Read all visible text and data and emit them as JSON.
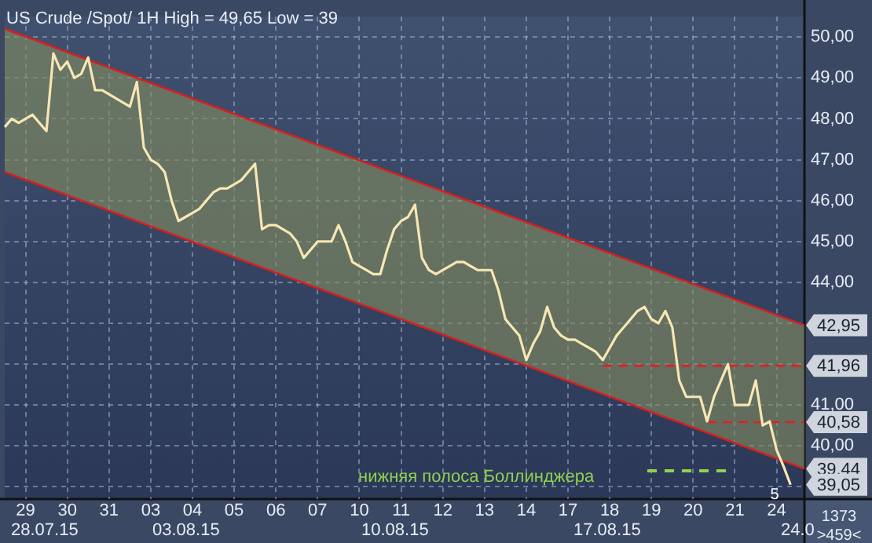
{
  "chart_data": {
    "type": "line",
    "title": "US Crude /Spot/ 1H High = 49,65 Low = 39",
    "categories": [
      null,
      null,
      null,
      "29",
      null,
      null,
      null,
      null,
      null,
      "30",
      null,
      null,
      null,
      null,
      null,
      "31",
      null,
      null,
      null,
      null,
      null,
      "03",
      null,
      null,
      null,
      null,
      null,
      "04",
      null,
      null,
      null,
      null,
      null,
      "05",
      null,
      null,
      null,
      null,
      null,
      "06",
      null,
      null,
      null,
      null,
      null,
      "07",
      null,
      null,
      null,
      null,
      null,
      "10",
      null,
      null,
      null,
      null,
      null,
      "11",
      null,
      null,
      null,
      null,
      null,
      "12",
      null,
      null,
      null,
      null,
      null,
      "13",
      null,
      null,
      null,
      null,
      null,
      "14",
      null,
      null,
      null,
      null,
      null,
      "17",
      null,
      null,
      null,
      null,
      null,
      "18",
      null,
      null,
      null,
      null,
      null,
      "19",
      null,
      null,
      null,
      null,
      null,
      "20",
      null,
      null,
      null,
      null,
      null,
      "21",
      null,
      null,
      null,
      null,
      null,
      "24",
      null,
      null,
      null,
      null
    ],
    "ylim": [
      38.7,
      50.5
    ],
    "yticks": [
      {
        "value": 39,
        "label": null
      },
      {
        "value": 40,
        "label": "40,00"
      },
      {
        "value": 41,
        "label": "41,00"
      },
      {
        "value": 42,
        "label": null
      },
      {
        "value": 43,
        "label": null
      },
      {
        "value": 44,
        "label": "44,00"
      },
      {
        "value": 45,
        "label": "45,00"
      },
      {
        "value": 46,
        "label": "46,00"
      },
      {
        "value": 47,
        "label": "47,00"
      },
      {
        "value": 48,
        "label": "48,00"
      },
      {
        "value": 49,
        "label": "49,00"
      },
      {
        "value": 50,
        "label": "50,00"
      }
    ],
    "grid": true,
    "legend": false,
    "marker": "none",
    "series": [
      {
        "type": "line",
        "color": "#d42020",
        "values": [
          50.2,
          null,
          null,
          null,
          null,
          null,
          null,
          null,
          null,
          null,
          null,
          null,
          null,
          null,
          null,
          null,
          null,
          null,
          null,
          null,
          null,
          null,
          null,
          null,
          null,
          null,
          null,
          null,
          null,
          null,
          null,
          null,
          null,
          null,
          null,
          null,
          null,
          null,
          null,
          null,
          null,
          null,
          null,
          null,
          null,
          null,
          null,
          null,
          null,
          null,
          null,
          null,
          null,
          null,
          null,
          null,
          null,
          null,
          null,
          null,
          null,
          null,
          null,
          null,
          null,
          null,
          null,
          null,
          null,
          null,
          null,
          null,
          null,
          null,
          null,
          null,
          null,
          null,
          null,
          null,
          null,
          null,
          null,
          null,
          null,
          null,
          null,
          null,
          null,
          null,
          null,
          null,
          null,
          null,
          null,
          null,
          null,
          null,
          null,
          null,
          null,
          null,
          null,
          null,
          null,
          null,
          null,
          null,
          null,
          null,
          null,
          null,
          null,
          null,
          null,
          42.95
        ],
        "lower": [
          46.7,
          null,
          null,
          null,
          null,
          null,
          null,
          null,
          null,
          null,
          null,
          null,
          null,
          null,
          null,
          null,
          null,
          null,
          null,
          null,
          null,
          null,
          null,
          null,
          null,
          null,
          null,
          null,
          null,
          null,
          null,
          null,
          null,
          null,
          null,
          null,
          null,
          null,
          null,
          null,
          null,
          null,
          null,
          null,
          null,
          null,
          null,
          null,
          null,
          null,
          null,
          null,
          null,
          null,
          null,
          null,
          null,
          null,
          null,
          null,
          null,
          null,
          null,
          null,
          null,
          null,
          null,
          null,
          null,
          null,
          null,
          null,
          null,
          null,
          null,
          null,
          null,
          null,
          null,
          null,
          null,
          null,
          null,
          null,
          null,
          null,
          null,
          null,
          null,
          null,
          null,
          null,
          null,
          null,
          null,
          null,
          null,
          null,
          null,
          null,
          null,
          null,
          null,
          null,
          null,
          null,
          null,
          null,
          null,
          null,
          null,
          null,
          null,
          null,
          null,
          39.44
        ],
        "upper": [
          50.2,
          null,
          null,
          null,
          null,
          null,
          null,
          null,
          null,
          null,
          null,
          null,
          null,
          null,
          null,
          null,
          null,
          null,
          null,
          null,
          null,
          null,
          null,
          null,
          null,
          null,
          null,
          null,
          null,
          null,
          null,
          null,
          null,
          null,
          null,
          null,
          null,
          null,
          null,
          null,
          null,
          null,
          null,
          null,
          null,
          null,
          null,
          null,
          null,
          null,
          null,
          null,
          null,
          null,
          null,
          null,
          null,
          null,
          null,
          null,
          null,
          null,
          null,
          null,
          null,
          null,
          null,
          null,
          null,
          null,
          null,
          null,
          null,
          null,
          null,
          null,
          null,
          null,
          null,
          null,
          null,
          null,
          null,
          null,
          null,
          null,
          null,
          null,
          null,
          null,
          null,
          null,
          null,
          null,
          null,
          null,
          null,
          null,
          null,
          null,
          null,
          null,
          null,
          null,
          null,
          null,
          null,
          null,
          null,
          null,
          null,
          null,
          null,
          null,
          null,
          42.95
        ],
        "value_labels": [
          null,
          null,
          null,
          null,
          null,
          null,
          null,
          null,
          null,
          null,
          null,
          null,
          null,
          null,
          null,
          null,
          null,
          null,
          null,
          null,
          null,
          null,
          null,
          null,
          null,
          null,
          null,
          null,
          null,
          null,
          null,
          null,
          null,
          null,
          null,
          null,
          null,
          null,
          null,
          null,
          null,
          null,
          null,
          null,
          null,
          null,
          null,
          null,
          null,
          null,
          null,
          null,
          null,
          null,
          null,
          null,
          null,
          null,
          null,
          null,
          null,
          null,
          null,
          null,
          null,
          null,
          null,
          null,
          null,
          null,
          null,
          null,
          null,
          null,
          null,
          null,
          null,
          null,
          null,
          null,
          null,
          null,
          null,
          null,
          null,
          null,
          null,
          null,
          null,
          null,
          null,
          null,
          null,
          null,
          null,
          null,
          null,
          null,
          null,
          null,
          null,
          null,
          null,
          null,
          null,
          null,
          null,
          null,
          null,
          null,
          null,
          null,
          null,
          null,
          null,
          "42,95"
        ]
      },
      {
        "type": "line",
        "color": "#d42020",
        "values": [
          46.7,
          null,
          null,
          null,
          null,
          null,
          null,
          null,
          null,
          null,
          null,
          null,
          null,
          null,
          null,
          null,
          null,
          null,
          null,
          null,
          null,
          null,
          null,
          null,
          null,
          null,
          null,
          null,
          null,
          null,
          null,
          null,
          null,
          null,
          null,
          null,
          null,
          null,
          null,
          null,
          null,
          null,
          null,
          null,
          null,
          null,
          null,
          null,
          null,
          null,
          null,
          null,
          null,
          null,
          null,
          null,
          null,
          null,
          null,
          null,
          null,
          null,
          null,
          null,
          null,
          null,
          null,
          null,
          null,
          null,
          null,
          null,
          null,
          null,
          null,
          null,
          null,
          null,
          null,
          null,
          null,
          null,
          null,
          null,
          null,
          null,
          null,
          null,
          null,
          null,
          null,
          null,
          null,
          null,
          null,
          null,
          null,
          null,
          null,
          null,
          null,
          null,
          null,
          null,
          null,
          null,
          null,
          null,
          null,
          null,
          null,
          null,
          null,
          null,
          null,
          39.44
        ],
        "value_labels": [
          null,
          null,
          null,
          null,
          null,
          null,
          null,
          null,
          null,
          null,
          null,
          null,
          null,
          null,
          null,
          null,
          null,
          null,
          null,
          null,
          null,
          null,
          null,
          null,
          null,
          null,
          null,
          null,
          null,
          null,
          null,
          null,
          null,
          null,
          null,
          null,
          null,
          null,
          null,
          null,
          null,
          null,
          null,
          null,
          null,
          null,
          null,
          null,
          null,
          null,
          null,
          null,
          null,
          null,
          null,
          null,
          null,
          null,
          null,
          null,
          null,
          null,
          null,
          null,
          null,
          null,
          null,
          null,
          null,
          null,
          null,
          null,
          null,
          null,
          null,
          null,
          null,
          null,
          null,
          null,
          null,
          null,
          null,
          null,
          null,
          null,
          null,
          null,
          null,
          null,
          null,
          null,
          null,
          null,
          null,
          null,
          null,
          null,
          null,
          null,
          null,
          null,
          null,
          null,
          null,
          null,
          null,
          null,
          null,
          null,
          null,
          null,
          null,
          null,
          null,
          "39,44"
        ]
      },
      {
        "type": "line",
        "color": "#e02020",
        "line_style": "dashed",
        "values": [
          null,
          null,
          null,
          null,
          null,
          null,
          null,
          null,
          null,
          null,
          null,
          null,
          null,
          null,
          null,
          null,
          null,
          null,
          null,
          null,
          null,
          null,
          null,
          null,
          null,
          null,
          null,
          null,
          null,
          null,
          null,
          null,
          null,
          null,
          null,
          null,
          null,
          null,
          null,
          null,
          null,
          null,
          null,
          null,
          null,
          null,
          null,
          null,
          null,
          null,
          null,
          null,
          null,
          null,
          null,
          null,
          null,
          null,
          null,
          null,
          null,
          null,
          null,
          null,
          null,
          null,
          null,
          null,
          null,
          null,
          null,
          null,
          null,
          null,
          null,
          null,
          null,
          null,
          null,
          null,
          null,
          null,
          null,
          null,
          null,
          null,
          41.96,
          null,
          null,
          null,
          null,
          null,
          null,
          null,
          null,
          null,
          null,
          null,
          null,
          null,
          null,
          null,
          null,
          null,
          null,
          null,
          null,
          null,
          null,
          null,
          null,
          null,
          null,
          null,
          null,
          41.96
        ],
        "value_labels": [
          null,
          null,
          null,
          null,
          null,
          null,
          null,
          null,
          null,
          null,
          null,
          null,
          null,
          null,
          null,
          null,
          null,
          null,
          null,
          null,
          null,
          null,
          null,
          null,
          null,
          null,
          null,
          null,
          null,
          null,
          null,
          null,
          null,
          null,
          null,
          null,
          null,
          null,
          null,
          null,
          null,
          null,
          null,
          null,
          null,
          null,
          null,
          null,
          null,
          null,
          null,
          null,
          null,
          null,
          null,
          null,
          null,
          null,
          null,
          null,
          null,
          null,
          null,
          null,
          null,
          null,
          null,
          null,
          null,
          null,
          null,
          null,
          null,
          null,
          null,
          null,
          null,
          null,
          null,
          null,
          null,
          null,
          null,
          null,
          null,
          null,
          null,
          null,
          null,
          null,
          null,
          null,
          null,
          null,
          null,
          null,
          null,
          null,
          null,
          null,
          null,
          null,
          null,
          null,
          null,
          null,
          null,
          null,
          null,
          null,
          null,
          null,
          null,
          null,
          null,
          "41,96"
        ]
      },
      {
        "type": "line",
        "color": "#e02020",
        "line_style": "dashed",
        "values": [
          null,
          null,
          null,
          null,
          null,
          null,
          null,
          null,
          null,
          null,
          null,
          null,
          null,
          null,
          null,
          null,
          null,
          null,
          null,
          null,
          null,
          null,
          null,
          null,
          null,
          null,
          null,
          null,
          null,
          null,
          null,
          null,
          null,
          null,
          null,
          null,
          null,
          null,
          null,
          null,
          null,
          null,
          null,
          null,
          null,
          null,
          null,
          null,
          null,
          null,
          null,
          null,
          null,
          null,
          null,
          null,
          null,
          null,
          null,
          null,
          null,
          null,
          null,
          null,
          null,
          null,
          null,
          null,
          null,
          null,
          null,
          null,
          null,
          null,
          null,
          null,
          null,
          null,
          null,
          null,
          null,
          null,
          null,
          null,
          null,
          null,
          null,
          null,
          null,
          null,
          null,
          null,
          null,
          null,
          null,
          null,
          null,
          null,
          null,
          null,
          null,
          40.58,
          null,
          null,
          null,
          null,
          null,
          null,
          null,
          null,
          null,
          null,
          null,
          null,
          null,
          40.58
        ],
        "value_labels": [
          null,
          null,
          null,
          null,
          null,
          null,
          null,
          null,
          null,
          null,
          null,
          null,
          null,
          null,
          null,
          null,
          null,
          null,
          null,
          null,
          null,
          null,
          null,
          null,
          null,
          null,
          null,
          null,
          null,
          null,
          null,
          null,
          null,
          null,
          null,
          null,
          null,
          null,
          null,
          null,
          null,
          null,
          null,
          null,
          null,
          null,
          null,
          null,
          null,
          null,
          null,
          null,
          null,
          null,
          null,
          null,
          null,
          null,
          null,
          null,
          null,
          null,
          null,
          null,
          null,
          null,
          null,
          null,
          null,
          null,
          null,
          null,
          null,
          null,
          null,
          null,
          null,
          null,
          null,
          null,
          null,
          null,
          null,
          null,
          null,
          null,
          null,
          null,
          null,
          null,
          null,
          null,
          null,
          null,
          null,
          null,
          null,
          null,
          null,
          null,
          null,
          null,
          null,
          null,
          null,
          null,
          null,
          null,
          null,
          null,
          null,
          null,
          null,
          null,
          null,
          "40,58"
        ]
      },
      {
        "type": "line",
        "color": "#f7e7b4",
        "values": [
          47.8,
          48.0,
          47.9,
          48.0,
          48.1,
          47.9,
          47.7,
          49.6,
          49.2,
          49.4,
          49.0,
          49.1,
          49.5,
          48.7,
          48.7,
          48.6,
          48.5,
          48.4,
          48.3,
          48.9,
          47.3,
          47.0,
          46.9,
          46.7,
          46.0,
          45.5,
          45.6,
          45.7,
          45.8,
          46.0,
          46.2,
          46.3,
          46.3,
          46.4,
          46.5,
          46.7,
          46.9,
          45.3,
          45.4,
          45.4,
          45.3,
          45.2,
          45.0,
          44.6,
          44.8,
          45.0,
          45.0,
          45.0,
          45.4,
          45.0,
          44.5,
          44.4,
          44.3,
          44.2,
          44.2,
          44.8,
          45.3,
          45.5,
          45.6,
          45.9,
          44.6,
          44.3,
          44.2,
          44.3,
          44.4,
          44.5,
          44.5,
          44.4,
          44.3,
          44.3,
          44.3,
          43.8,
          43.1,
          42.9,
          42.7,
          42.1,
          42.5,
          42.8,
          43.4,
          42.9,
          42.7,
          42.6,
          42.6,
          42.5,
          42.4,
          42.3,
          42.1,
          42.4,
          42.7,
          42.9,
          43.1,
          43.3,
          43.4,
          43.1,
          43.0,
          43.3,
          42.9,
          41.6,
          41.2,
          41.2,
          41.2,
          40.6,
          41.2,
          41.6,
          42.0,
          41.0,
          41.0,
          41.0,
          41.6,
          40.5,
          40.6,
          39.9,
          39.5,
          39.05,
          null,
          null
        ],
        "value_labels": [
          null,
          null,
          null,
          null,
          null,
          null,
          null,
          null,
          null,
          null,
          null,
          null,
          null,
          null,
          null,
          null,
          null,
          null,
          null,
          null,
          null,
          null,
          null,
          null,
          null,
          null,
          null,
          null,
          null,
          null,
          null,
          null,
          null,
          null,
          null,
          null,
          null,
          null,
          null,
          null,
          null,
          null,
          null,
          null,
          null,
          null,
          null,
          null,
          null,
          null,
          null,
          null,
          null,
          null,
          null,
          null,
          null,
          null,
          null,
          null,
          null,
          null,
          null,
          null,
          null,
          null,
          null,
          null,
          null,
          null,
          null,
          null,
          null,
          null,
          null,
          null,
          null,
          null,
          null,
          null,
          null,
          null,
          null,
          null,
          null,
          null,
          null,
          null,
          null,
          null,
          null,
          null,
          null,
          null,
          null,
          null,
          null,
          null,
          null,
          null,
          null,
          null,
          null,
          null,
          null,
          null,
          null,
          null,
          null,
          null,
          null,
          null,
          null,
          "39,05",
          null,
          null
        ]
      }
    ],
    "annotations": [
      "нижняя полоса Боллинджера",
      "5",
      "1373",
      ">459<",
      "28.07.15",
      "03.08.15",
      "10.08.15",
      "17.08.15",
      "24.0"
    ]
  }
}
